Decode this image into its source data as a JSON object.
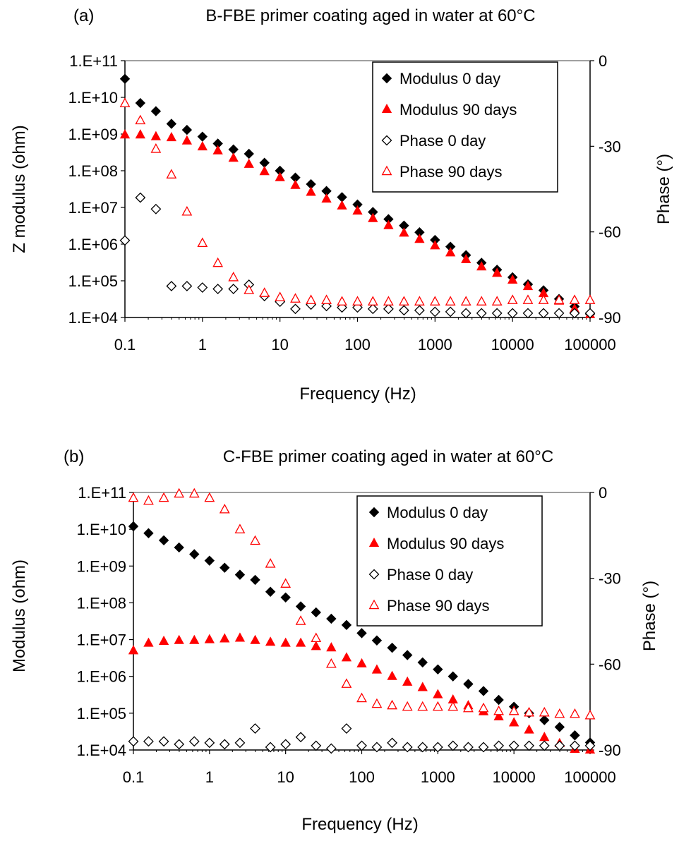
{
  "figure": {
    "panels": [
      {
        "panel_label": "(a)",
        "title": "B-FBE primer coating aged in water at 60°C",
        "xlabel": "Frequency (Hz)",
        "ylabel_left": "Z modulus (ohm)",
        "ylabel_right": "Phase (°)"
      },
      {
        "panel_label": "(b)",
        "title": "C-FBE primer coating aged in water at 60°C",
        "xlabel": "Frequency (Hz)",
        "ylabel_left": "Modulus (ohm)",
        "ylabel_right": "Phase (°)"
      }
    ]
  },
  "chart_data": [
    {
      "type": "scatter",
      "title": "B-FBE primer coating aged in water at 60°C",
      "panel_label": "(a)",
      "xlabel": "Frequency (Hz)",
      "ylabel": "Z modulus (ohm)",
      "y2label": "Phase (°)",
      "x_scale": "log",
      "y_scale": "log",
      "xlim": [
        0.1,
        100000
      ],
      "ylim": [
        10000,
        100000000000
      ],
      "y2lim": [
        -90,
        0
      ],
      "x_ticks": [
        "0.1",
        "1",
        "10",
        "100",
        "1000",
        "10000",
        "100000"
      ],
      "y_ticks": [
        "1.E+04",
        "1.E+05",
        "1.E+06",
        "1.E+07",
        "1.E+08",
        "1.E+09",
        "1.E+10",
        "1.E+11"
      ],
      "y2_ticks": [
        "-90",
        "-60",
        "-30",
        "0"
      ],
      "grid": false,
      "legend_position": "top-right",
      "x": [
        0.1,
        0.158,
        0.251,
        0.398,
        0.631,
        1,
        1.58,
        2.51,
        3.98,
        6.31,
        10,
        15.8,
        25.1,
        39.8,
        63.1,
        100,
        158,
        251,
        398,
        631,
        1000,
        1580,
        2510,
        3980,
        6310,
        10000,
        15800,
        25100,
        39800,
        63100,
        100000
      ],
      "series": [
        {
          "name": "Modulus 0 day",
          "axis": "left",
          "color": "#000000",
          "marker": "diamond-filled",
          "values": [
            32000000000.0,
            7000000000.0,
            4200000000.0,
            1900000000.0,
            1300000000.0,
            850000000.0,
            550000000.0,
            380000000.0,
            290000000.0,
            165000000.0,
            100000000.0,
            65000000.0,
            43000000.0,
            28000000.0,
            19000000.0,
            12000000.0,
            7500000.0,
            4800000.0,
            3200000.0,
            2100000.0,
            1300000.0,
            850000.0,
            500000.0,
            310000.0,
            200000.0,
            125000.0,
            80000.0,
            55000.0,
            32000.0,
            20000.0,
            12500.0
          ]
        },
        {
          "name": "Modulus 90 days",
          "axis": "left",
          "color": "#ff0000",
          "marker": "triangle-filled",
          "values": [
            950000000.0,
            950000000.0,
            850000000.0,
            800000000.0,
            650000000.0,
            450000000.0,
            350000000.0,
            220000000.0,
            150000000.0,
            95000000.0,
            65000000.0,
            40000000.0,
            26000000.0,
            17000000.0,
            11000000.0,
            8000000.0,
            5000000.0,
            3200000.0,
            2000000.0,
            1350000.0,
            900000.0,
            580000.0,
            380000.0,
            240000.0,
            160000.0,
            105000.0,
            70000.0,
            45000.0,
            28000.0,
            17000.0,
            12000.0
          ]
        },
        {
          "name": "Phase 0 day",
          "axis": "right",
          "color": "#000000",
          "marker": "diamond-open",
          "values": [
            -63,
            -48,
            -52,
            -79,
            -79,
            -79.5,
            -80,
            -80,
            -78.5,
            -82.5,
            -84.5,
            -87,
            -85.5,
            -86,
            -86.5,
            -86.5,
            -87,
            -87,
            -87.5,
            -87.5,
            -88,
            -88,
            -88.5,
            -88.5,
            -88.5,
            -88.5,
            -88.5,
            -88.5,
            -88.5,
            -88.5,
            -88.5
          ]
        },
        {
          "name": "Phase 90 days",
          "axis": "right",
          "color": "#ff0000",
          "marker": "triangle-open",
          "values": [
            -15,
            -21,
            -31,
            -40,
            -53,
            -64,
            -71,
            -76,
            -80.5,
            -81.5,
            -83,
            -83.5,
            -84,
            -84,
            -84.5,
            -84.5,
            -84.5,
            -84.5,
            -84.5,
            -84.5,
            -84.5,
            -84.5,
            -84.5,
            -84.5,
            -84.5,
            -84,
            -84,
            -84,
            -84,
            -84,
            -84
          ]
        }
      ]
    },
    {
      "type": "scatter",
      "title": "C-FBE primer coating aged in water at 60°C",
      "panel_label": "(b)",
      "xlabel": "Frequency (Hz)",
      "ylabel": "Modulus (ohm)",
      "y2label": "Phase (°)",
      "x_scale": "log",
      "y_scale": "log",
      "xlim": [
        0.1,
        100000
      ],
      "ylim": [
        10000,
        100000000000
      ],
      "y2lim": [
        -90,
        0
      ],
      "x_ticks": [
        "0.1",
        "1",
        "10",
        "100",
        "1000",
        "10000",
        "100000"
      ],
      "y_ticks": [
        "1.E+04",
        "1.E+05",
        "1.E+06",
        "1.E+07",
        "1.E+08",
        "1.E+09",
        "1.E+10",
        "1.E+11"
      ],
      "y2_ticks": [
        "-90",
        "-60",
        "-30",
        "0"
      ],
      "grid": false,
      "legend_position": "top-right",
      "x": [
        0.1,
        0.158,
        0.251,
        0.398,
        0.631,
        1,
        1.58,
        2.51,
        3.98,
        6.31,
        10,
        15.8,
        25.1,
        39.8,
        63.1,
        100,
        158,
        251,
        398,
        631,
        1000,
        1580,
        2510,
        3980,
        6310,
        10000,
        15800,
        25100,
        39800,
        63100,
        100000
      ],
      "series": [
        {
          "name": "Modulus 0 day",
          "axis": "left",
          "color": "#000000",
          "marker": "diamond-filled",
          "values": [
            12000000000.0,
            7800000000.0,
            5000000000.0,
            3200000000.0,
            2100000000.0,
            1400000000.0,
            900000000.0,
            580000000.0,
            420000000.0,
            200000000.0,
            140000000.0,
            80000000.0,
            55000000.0,
            37000000.0,
            25000000.0,
            15000000.0,
            9500000.0,
            6000000.0,
            3800000.0,
            2400000.0,
            1550000.0,
            1000000.0,
            620000.0,
            400000.0,
            230000.0,
            150000.0,
            100000.0,
            65000.0,
            42000.0,
            25000.0,
            16000.0
          ]
        },
        {
          "name": "Modulus 90 days",
          "axis": "left",
          "color": "#ff0000",
          "marker": "triangle-filled",
          "values": [
            5000000.0,
            8000000.0,
            9000000.0,
            9500000.0,
            9500000.0,
            10000000.0,
            10500000.0,
            11000000.0,
            9500000.0,
            8500000.0,
            8000000.0,
            8000000.0,
            6500000.0,
            6000000.0,
            3200000.0,
            2200000.0,
            1500000.0,
            1000000.0,
            700000.0,
            500000.0,
            320000.0,
            230000.0,
            160000.0,
            110000.0,
            80000.0,
            55000.0,
            35000.0,
            22000.0,
            15000.0,
            10500.0,
            10000.0
          ]
        },
        {
          "name": "Phase 0 day",
          "axis": "right",
          "color": "#000000",
          "marker": "diamond-open",
          "values": [
            -87,
            -87,
            -87,
            -88,
            -87,
            -87.5,
            -88,
            -87.5,
            -82.5,
            -89,
            -88,
            -85.5,
            -88.5,
            -89.5,
            -82.5,
            -88.5,
            -89,
            -87.5,
            -89,
            -89,
            -89,
            -88.5,
            -89,
            -89,
            -88.5,
            -88.5,
            -88.5,
            -88.5,
            -88.5,
            -88.5,
            -88.5
          ]
        },
        {
          "name": "Phase 90 days",
          "axis": "right",
          "color": "#ff0000",
          "marker": "triangle-open",
          "values": [
            -2,
            -3,
            -2,
            -0.5,
            -0.5,
            -2,
            -6,
            -13,
            -17,
            -25,
            -32,
            -45,
            -51,
            -60,
            -67,
            -72,
            -74,
            -74.5,
            -75,
            -75,
            -75,
            -75,
            -75.5,
            -75.5,
            -76.5,
            -76.5,
            -77,
            -77,
            -77.5,
            -77.5,
            -78
          ]
        }
      ]
    }
  ]
}
